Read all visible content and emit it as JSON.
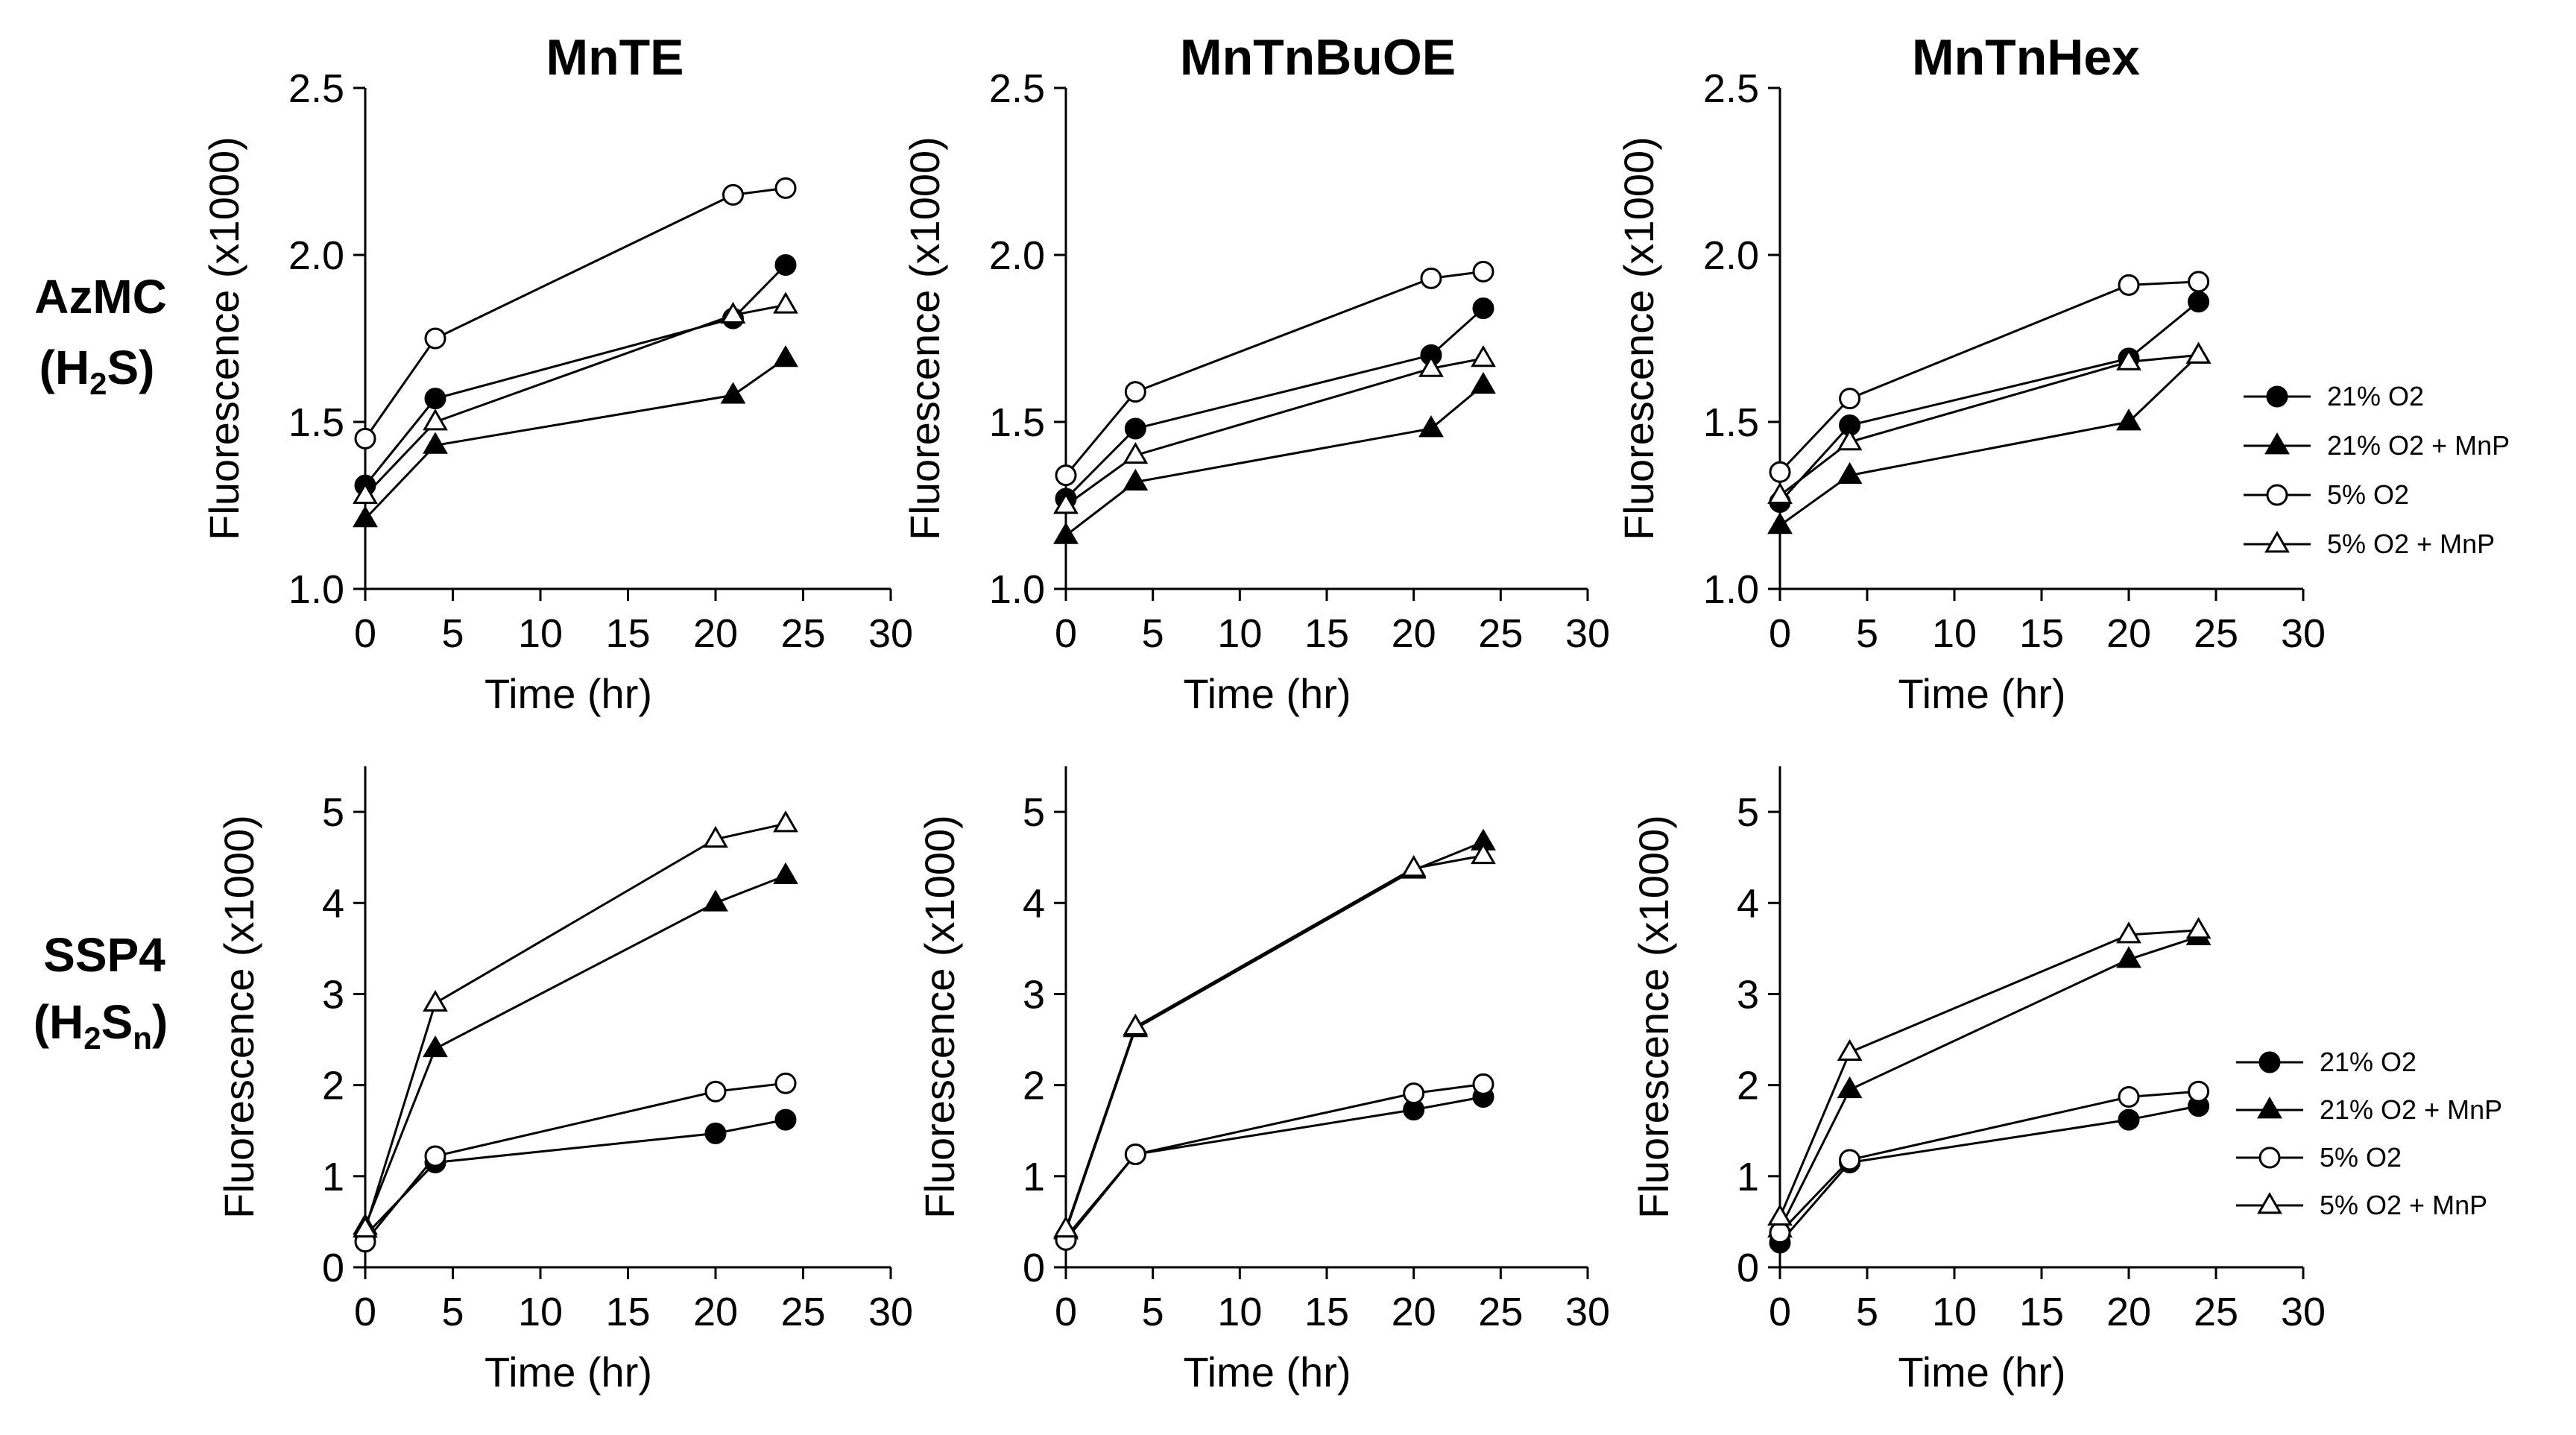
{
  "column_titles": [
    "MnTE",
    "MnTnBuOE",
    "MnTnHex"
  ],
  "row_labels": [
    {
      "name": "AzMC",
      "sub": "(H2S)"
    },
    {
      "name": "SSP4",
      "sub": "(H2Sn)"
    }
  ],
  "legend": {
    "items": [
      {
        "label": "21% O2",
        "marker": "filled-circle"
      },
      {
        "label": "21% O2 + MnP",
        "marker": "filled-triangle"
      },
      {
        "label": "5% O2",
        "marker": "open-circle"
      },
      {
        "label": "5% O2 + MnP",
        "marker": "open-triangle"
      }
    ]
  },
  "chart_data": [
    {
      "type": "line",
      "title": "MnTE",
      "row": "AzMC (H2S)",
      "xlabel": "Time (hr)",
      "ylabel": "Fluorescence (x1000)",
      "xlim": [
        0,
        30
      ],
      "ylim": [
        1.0,
        2.5
      ],
      "xticks": [
        "0",
        "5",
        "10",
        "15",
        "20",
        "25",
        "30"
      ],
      "yticks": [
        "1.0",
        "1.5",
        "2.0",
        "2.5"
      ],
      "series": [
        {
          "name": "21% O2",
          "x": [
            0,
            4,
            21,
            24
          ],
          "values": [
            1.31,
            1.57,
            1.81,
            1.97
          ]
        },
        {
          "name": "21% O2 + MnP",
          "x": [
            0,
            4,
            21,
            24
          ],
          "values": [
            1.21,
            1.43,
            1.58,
            1.69
          ]
        },
        {
          "name": "5% O2",
          "x": [
            0,
            4,
            21,
            24
          ],
          "values": [
            1.45,
            1.75,
            2.18,
            2.2
          ]
        },
        {
          "name": "5% O2 + MnP",
          "x": [
            0,
            4,
            21,
            24
          ],
          "values": [
            1.28,
            1.5,
            1.82,
            1.85
          ]
        }
      ]
    },
    {
      "type": "line",
      "title": "MnTnBuOE",
      "row": "AzMC (H2S)",
      "xlabel": "Time (hr)",
      "ylabel": "Fluorescence (x1000)",
      "xlim": [
        0,
        30
      ],
      "ylim": [
        1.0,
        2.5
      ],
      "xticks": [
        "0",
        "5",
        "10",
        "15",
        "20",
        "25",
        "30"
      ],
      "yticks": [
        "1.0",
        "1.5",
        "2.0",
        "2.5"
      ],
      "series": [
        {
          "name": "21% O2",
          "x": [
            0,
            4,
            21,
            24
          ],
          "values": [
            1.27,
            1.48,
            1.7,
            1.84
          ]
        },
        {
          "name": "21% O2 + MnP",
          "x": [
            0,
            4,
            21,
            24
          ],
          "values": [
            1.16,
            1.32,
            1.48,
            1.61
          ]
        },
        {
          "name": "5% O2",
          "x": [
            0,
            4,
            21,
            24
          ],
          "values": [
            1.34,
            1.59,
            1.93,
            1.95
          ]
        },
        {
          "name": "5% O2 + MnP",
          "x": [
            0,
            4,
            21,
            24
          ],
          "values": [
            1.25,
            1.4,
            1.66,
            1.69
          ]
        }
      ]
    },
    {
      "type": "line",
      "title": "MnTnHex",
      "row": "AzMC (H2S)",
      "xlabel": "Time (hr)",
      "ylabel": "Fluorescence (x1000)",
      "xlim": [
        0,
        30
      ],
      "ylim": [
        1.0,
        2.5
      ],
      "xticks": [
        "0",
        "5",
        "10",
        "15",
        "20",
        "25",
        "30"
      ],
      "yticks": [
        "1.0",
        "1.5",
        "2.0",
        "2.5"
      ],
      "series": [
        {
          "name": "21% O2",
          "x": [
            0,
            4,
            20,
            24
          ],
          "values": [
            1.26,
            1.49,
            1.69,
            1.86
          ]
        },
        {
          "name": "21% O2 + MnP",
          "x": [
            0,
            4,
            20,
            24
          ],
          "values": [
            1.19,
            1.34,
            1.5,
            1.7
          ]
        },
        {
          "name": "5% O2",
          "x": [
            0,
            4,
            20,
            24
          ],
          "values": [
            1.35,
            1.57,
            1.91,
            1.92
          ]
        },
        {
          "name": "5% O2 + MnP",
          "x": [
            0,
            4,
            20,
            24
          ],
          "values": [
            1.28,
            1.44,
            1.68,
            1.7
          ]
        }
      ]
    },
    {
      "type": "line",
      "title": "MnTE",
      "row": "SSP4 (H2Sn)",
      "xlabel": "Time (hr)",
      "ylabel": "Fluorescence (x1000)",
      "xlim": [
        0,
        30
      ],
      "ylim": [
        0,
        5.5
      ],
      "xticks": [
        "0",
        "5",
        "10",
        "15",
        "20",
        "25",
        "30"
      ],
      "yticks": [
        "0",
        "1",
        "2",
        "3",
        "4",
        "5"
      ],
      "series": [
        {
          "name": "21% O2",
          "x": [
            0,
            4,
            20,
            24
          ],
          "values": [
            0.35,
            1.15,
            1.47,
            1.62
          ]
        },
        {
          "name": "21% O2 + MnP",
          "x": [
            0,
            4,
            20,
            24
          ],
          "values": [
            0.45,
            2.4,
            4.0,
            4.3
          ]
        },
        {
          "name": "5% O2",
          "x": [
            0,
            4,
            20,
            24
          ],
          "values": [
            0.28,
            1.22,
            1.93,
            2.02
          ]
        },
        {
          "name": "5% O2 + MnP",
          "x": [
            0,
            4,
            20,
            24
          ],
          "values": [
            0.42,
            2.9,
            4.7,
            4.87
          ]
        }
      ]
    },
    {
      "type": "line",
      "title": "MnTnBuOE",
      "row": "SSP4 (H2Sn)",
      "xlabel": "Time (hr)",
      "ylabel": "Fluorescence (x1000)",
      "xlim": [
        0,
        30
      ],
      "ylim": [
        0,
        5.5
      ],
      "xticks": [
        "0",
        "5",
        "10",
        "15",
        "20",
        "25",
        "30"
      ],
      "yticks": [
        "0",
        "1",
        "2",
        "3",
        "4",
        "5"
      ],
      "series": [
        {
          "name": "21% O2",
          "x": [
            0,
            4,
            20,
            24
          ],
          "values": [
            0.33,
            1.24,
            1.73,
            1.87
          ]
        },
        {
          "name": "21% O2 + MnP",
          "x": [
            0,
            4,
            20,
            24
          ],
          "values": [
            0.4,
            2.62,
            4.36,
            4.67
          ]
        },
        {
          "name": "5% O2",
          "x": [
            0,
            4,
            20,
            24
          ],
          "values": [
            0.3,
            1.24,
            1.91,
            2.01
          ]
        },
        {
          "name": "5% O2 + MnP",
          "x": [
            0,
            4,
            20,
            24
          ],
          "values": [
            0.42,
            2.64,
            4.38,
            4.52
          ]
        }
      ]
    },
    {
      "type": "line",
      "title": "MnTnHex",
      "row": "SSP4 (H2Sn)",
      "xlabel": "Time (hr)",
      "ylabel": "Fluorescence (x1000)",
      "xlim": [
        0,
        30
      ],
      "ylim": [
        0,
        5.5
      ],
      "xticks": [
        "0",
        "5",
        "10",
        "15",
        "20",
        "25",
        "30"
      ],
      "yticks": [
        "0",
        "1",
        "2",
        "3",
        "4",
        "5"
      ],
      "series": [
        {
          "name": "21% O2",
          "x": [
            0,
            4,
            20,
            24
          ],
          "values": [
            0.27,
            1.15,
            1.62,
            1.77
          ]
        },
        {
          "name": "21% O2 + MnP",
          "x": [
            0,
            4,
            20,
            24
          ],
          "values": [
            0.42,
            1.95,
            3.38,
            3.63
          ]
        },
        {
          "name": "5% O2",
          "x": [
            0,
            4,
            20,
            24
          ],
          "values": [
            0.38,
            1.18,
            1.87,
            1.93
          ]
        },
        {
          "name": "5% O2 + MnP",
          "x": [
            0,
            4,
            20,
            24
          ],
          "values": [
            0.55,
            2.36,
            3.65,
            3.7
          ]
        }
      ]
    }
  ]
}
